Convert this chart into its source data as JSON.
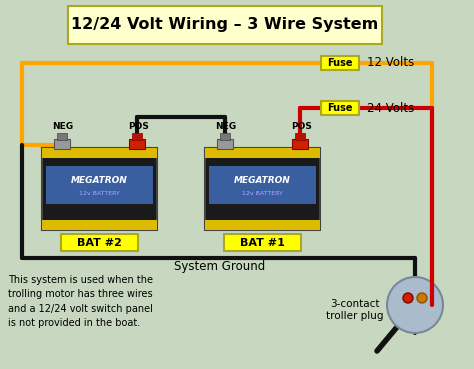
{
  "title": "12/24 Volt Wiring – 3 Wire System",
  "bg_color": "#c8d8c0",
  "title_bg": "#ffffcc",
  "title_edge": "#aaa820",
  "bat1_label": "BAT #1",
  "bat2_label": "BAT #2",
  "bat_label_bg": "#ffff00",
  "bat_label_edge": "#aaa820",
  "neg_label": "NEG",
  "pos_label": "POS",
  "fuse_label": "Fuse",
  "fuse_bg": "#ffff00",
  "fuse_edge": "#aaa820",
  "v12_label": "12 Volts",
  "v24_label": "24 Volts",
  "system_ground_label": "System Ground",
  "contact_label": "3-contact\ntroller plug",
  "body_text": "This system is used when the\ntrolling motor has three wires\nand a 12/24 volt switch panel\nis not provided in the boat.",
  "wire_black": "#111111",
  "wire_orange": "#FFA500",
  "wire_red": "#CC0000",
  "bat_body": "#1a1a1a",
  "bat_stripe_yellow": "#ddbb00",
  "bat_blue": "#3a5fa0",
  "plug_circle_color": "#aabbcc",
  "plug_circle_edge": "#778899",
  "neg_terminal": "#999999",
  "pos_terminal": "#cc2200",
  "figsize": [
    4.74,
    3.69
  ],
  "dpi": 100
}
